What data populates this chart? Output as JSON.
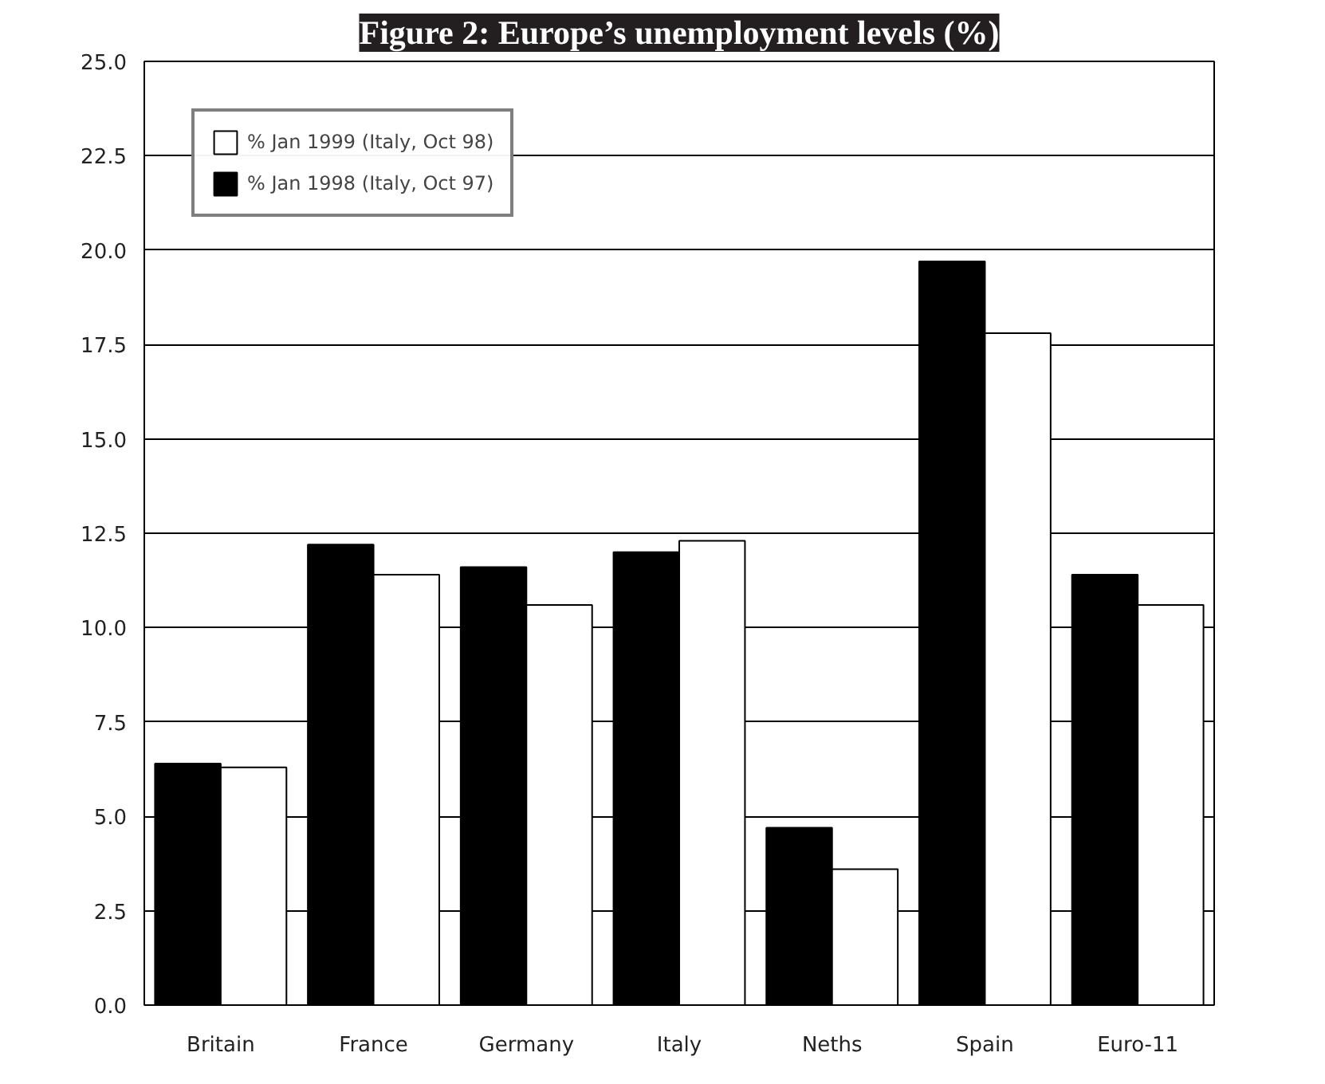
{
  "chart_data": {
    "type": "bar",
    "title": "Figure 2: Europe’s unemployment levels (%)",
    "categories": [
      "Britain",
      "France",
      "Germany",
      "Italy",
      "Neths",
      "Spain",
      "Euro-11"
    ],
    "series": [
      {
        "name": "% Jan 1998 (Italy, Oct 97)",
        "color": "#000000",
        "values": [
          6.4,
          12.2,
          11.6,
          12.0,
          4.7,
          19.7,
          11.4
        ]
      },
      {
        "name": "% Jan 1999 (Italy, Oct 98)",
        "color": "#ffffff",
        "values": [
          6.3,
          11.4,
          10.6,
          12.3,
          3.6,
          17.8,
          10.6
        ]
      }
    ],
    "ylim": [
      0,
      25
    ],
    "yticks": [
      {
        "value": 0,
        "label": "0.0"
      },
      {
        "value": 2.5,
        "label": "2.5"
      },
      {
        "value": 5,
        "label": "5.0"
      },
      {
        "value": 7.5,
        "label": "7.5"
      },
      {
        "value": 10,
        "label": "10.0"
      },
      {
        "value": 12.5,
        "label": "12.5"
      },
      {
        "value": 15,
        "label": "15.0"
      },
      {
        "value": 17.5,
        "label": "17.5"
      },
      {
        "value": 20,
        "label": "20.0"
      },
      {
        "value": 22.5,
        "label": "22.5"
      },
      {
        "value": 25,
        "label": "25.0"
      }
    ],
    "grid": "y",
    "legend": "top left"
  }
}
